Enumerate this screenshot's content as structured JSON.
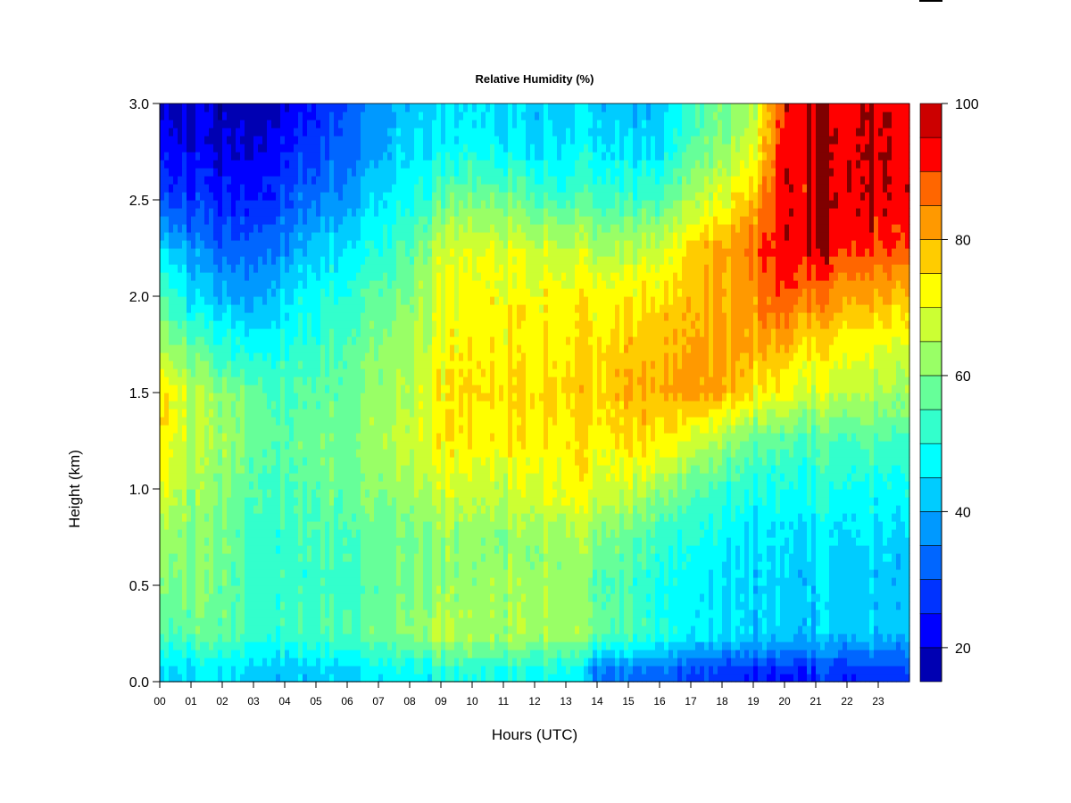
{
  "chart_data": {
    "type": "heatmap",
    "title": "Relative Humidity (%)",
    "xlabel": "Hours (UTC)",
    "ylabel": "Height (km)",
    "xlim": [
      0,
      24
    ],
    "ylim": [
      0,
      3
    ],
    "x_ticks": [
      "00",
      "01",
      "02",
      "03",
      "04",
      "05",
      "06",
      "07",
      "08",
      "09",
      "10",
      "11",
      "12",
      "13",
      "14",
      "15",
      "16",
      "17",
      "18",
      "19",
      "20",
      "21",
      "22",
      "23"
    ],
    "y_ticks": [
      "0.0",
      "0.5",
      "1.0",
      "1.5",
      "2.0",
      "2.5",
      "3.0"
    ],
    "colorbar": {
      "range": [
        15,
        100
      ],
      "tick_labels": [
        "20",
        "40",
        "60",
        "80",
        "100"
      ],
      "tick_values": [
        20,
        40,
        60,
        80,
        100
      ],
      "levels": [
        15,
        20,
        25,
        30,
        35,
        40,
        45,
        50,
        55,
        60,
        65,
        70,
        75,
        80,
        85,
        90,
        95,
        100
      ],
      "colors": [
        "#00007f",
        "#0000b2",
        "#0000ff",
        "#0033ff",
        "#0066ff",
        "#0099ff",
        "#00ccff",
        "#00ffff",
        "#33ffcc",
        "#66ff99",
        "#99ff66",
        "#ccff33",
        "#ffff00",
        "#ffcc00",
        "#ff9900",
        "#ff6600",
        "#ff0000",
        "#cc0000",
        "#7f0000"
      ]
    },
    "heights_km": [
      0.05,
      0.25,
      0.5,
      0.75,
      1.0,
      1.25,
      1.5,
      1.75,
      2.0,
      2.25,
      2.5,
      2.75,
      3.0
    ],
    "hours": [
      0,
      1,
      2,
      3,
      4,
      5,
      6,
      7,
      8,
      9,
      10,
      11,
      12,
      13,
      14,
      15,
      16,
      17,
      18,
      19,
      20,
      21,
      22,
      23,
      24
    ],
    "rh_profiles": [
      [
        48,
        60,
        65,
        68,
        75,
        80,
        80,
        70,
        62,
        50,
        35,
        28,
        25
      ],
      [
        50,
        62,
        65,
        65,
        68,
        70,
        72,
        62,
        50,
        42,
        32,
        26,
        24
      ],
      [
        50,
        62,
        63,
        63,
        65,
        68,
        66,
        55,
        45,
        36,
        30,
        25,
        22
      ],
      [
        50,
        60,
        60,
        60,
        62,
        65,
        64,
        55,
        45,
        40,
        32,
        27,
        24
      ],
      [
        48,
        58,
        58,
        58,
        60,
        62,
        60,
        55,
        50,
        42,
        35,
        30,
        26
      ],
      [
        48,
        60,
        58,
        60,
        62,
        64,
        62,
        58,
        54,
        48,
        40,
        34,
        30
      ],
      [
        50,
        62,
        60,
        62,
        65,
        66,
        64,
        62,
        58,
        52,
        45,
        40,
        38
      ],
      [
        52,
        64,
        62,
        63,
        66,
        70,
        68,
        66,
        62,
        56,
        50,
        45,
        42
      ],
      [
        52,
        66,
        64,
        64,
        68,
        72,
        70,
        68,
        65,
        60,
        54,
        50,
        46
      ],
      [
        55,
        70,
        66,
        66,
        72,
        78,
        78,
        76,
        75,
        72,
        62,
        52,
        48
      ],
      [
        55,
        68,
        66,
        66,
        72,
        78,
        80,
        78,
        77,
        74,
        64,
        54,
        50
      ],
      [
        55,
        68,
        68,
        66,
        72,
        78,
        80,
        78,
        77,
        74,
        64,
        52,
        48
      ],
      [
        55,
        70,
        68,
        68,
        75,
        80,
        82,
        80,
        78,
        74,
        62,
        52,
        48
      ],
      [
        55,
        70,
        68,
        70,
        78,
        80,
        82,
        80,
        78,
        72,
        60,
        52,
        48
      ],
      [
        40,
        64,
        62,
        66,
        74,
        78,
        82,
        80,
        78,
        70,
        60,
        52,
        48
      ],
      [
        38,
        60,
        58,
        62,
        72,
        80,
        84,
        82,
        78,
        70,
        58,
        50,
        46
      ],
      [
        38,
        56,
        55,
        58,
        68,
        80,
        85,
        84,
        80,
        72,
        60,
        50,
        46
      ],
      [
        35,
        52,
        52,
        56,
        62,
        74,
        88,
        86,
        84,
        82,
        70,
        62,
        58
      ],
      [
        32,
        50,
        50,
        52,
        58,
        68,
        86,
        86,
        85,
        85,
        74,
        66,
        62
      ],
      [
        30,
        48,
        48,
        50,
        54,
        62,
        78,
        86,
        88,
        92,
        84,
        74,
        70
      ],
      [
        30,
        48,
        48,
        50,
        54,
        60,
        76,
        84,
        94,
        98,
        98,
        98,
        98
      ],
      [
        32,
        48,
        48,
        50,
        55,
        60,
        72,
        80,
        90,
        100,
        100,
        100,
        100
      ],
      [
        32,
        48,
        48,
        50,
        55,
        60,
        72,
        78,
        88,
        98,
        100,
        100,
        100
      ],
      [
        33,
        48,
        48,
        50,
        55,
        60,
        70,
        76,
        86,
        96,
        100,
        100,
        100
      ],
      [
        34,
        48,
        48,
        50,
        55,
        60,
        70,
        76,
        85,
        95,
        100,
        100,
        100
      ]
    ]
  }
}
